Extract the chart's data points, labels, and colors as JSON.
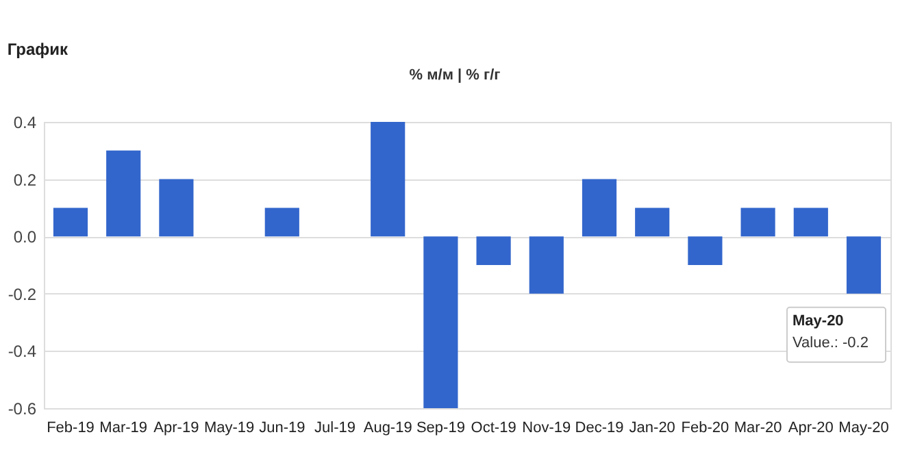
{
  "chart_data": {
    "type": "bar",
    "title": "График",
    "categories": [
      "Feb-19",
      "Mar-19",
      "Apr-19",
      "May-19",
      "Jun-19",
      "Jul-19",
      "Aug-19",
      "Sep-19",
      "Oct-19",
      "Nov-19",
      "Dec-19",
      "Jan-20",
      "Feb-20",
      "Mar-20",
      "Apr-20",
      "May-20"
    ],
    "values": [
      0.1,
      0.3,
      0.2,
      0,
      0.1,
      0,
      0.4,
      -0.6,
      -0.1,
      -0.2,
      0.2,
      0.1,
      -0.1,
      0.1,
      0.1,
      -0.2
    ],
    "color": "#3366cc",
    "ylim": [
      -0.6,
      0.4
    ],
    "yticks": [
      {
        "value": -0.6,
        "label": "-0.6"
      },
      {
        "value": -0.4,
        "label": "-0.4"
      },
      {
        "value": -0.2,
        "label": "-0.2"
      },
      {
        "value": 0,
        "label": "0.0"
      },
      0.2,
      0.4
    ],
    "grid": "y",
    "annotations": [
      "% м/м | % г/г",
      {
        "text": "May-20\nValue.: -0.2",
        "x": "May-20",
        "y": -0.2
      }
    ]
  }
}
